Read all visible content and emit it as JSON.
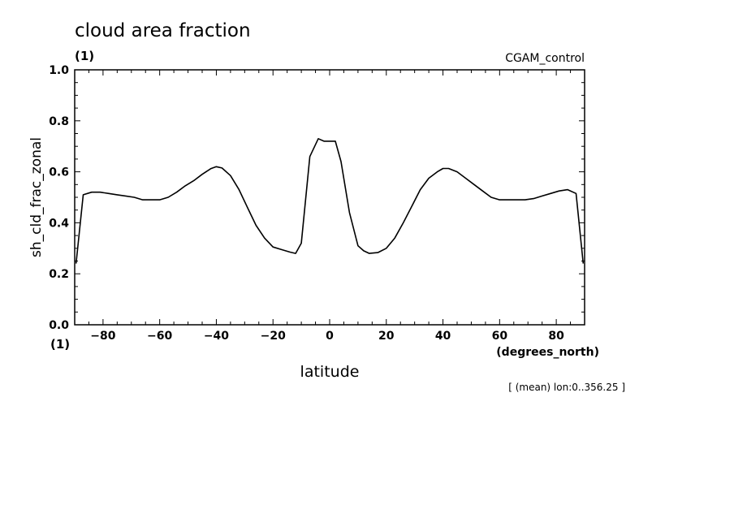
{
  "chart_data": {
    "type": "line",
    "title": "cloud area fraction",
    "title_units": "(1)",
    "run_label": "CGAM_control",
    "ylabel": "sh_cld_frac_zonal",
    "y_units": "(1)",
    "xlabel": "latitude",
    "x_units": "(degrees_north)",
    "note": "[ (mean) lon:0..356.25 ]",
    "xlim": [
      -90,
      90
    ],
    "ylim": [
      0.0,
      1.0
    ],
    "x_ticks": [
      -80,
      -60,
      -40,
      -20,
      0,
      20,
      40,
      60,
      80
    ],
    "x_tick_labels": [
      "−80",
      "−60",
      "−40",
      "−20",
      "0",
      "20",
      "40",
      "60",
      "80"
    ],
    "y_ticks": [
      0.0,
      0.2,
      0.4,
      0.6,
      0.8,
      1.0
    ],
    "y_tick_labels": [
      "0.0",
      "0.2",
      "0.4",
      "0.6",
      "0.8",
      "1.0"
    ],
    "grid": false,
    "line_color": "#000000",
    "series": [
      {
        "x": [
          -89.5,
          -87.0,
          -84.0,
          -81.0,
          -78.0,
          -75.0,
          -72.0,
          -69.0,
          -66.0,
          -63.0,
          -60.0,
          -57.0,
          -54.0,
          -51.0,
          -48.0,
          -45.0,
          -42.0,
          -40.0,
          -38.0,
          -35.0,
          -32.0,
          -29.0,
          -26.0,
          -23.0,
          -20.0,
          -17.0,
          -14.0,
          -12.0,
          -10.0,
          -7.0,
          -4.0,
          -2.0,
          2.0,
          4.0,
          7.0,
          10.0,
          12.0,
          14.0,
          17.0,
          20.0,
          23.0,
          26.0,
          29.0,
          32.0,
          35.0,
          38.0,
          40.0,
          42.0,
          45.0,
          48.0,
          51.0,
          54.0,
          57.0,
          60.0,
          63.0,
          66.0,
          69.0,
          72.0,
          75.0,
          78.0,
          81.0,
          84.0,
          87.0,
          89.5
        ],
        "y": [
          0.24,
          0.51,
          0.52,
          0.52,
          0.515,
          0.51,
          0.505,
          0.5,
          0.49,
          0.49,
          0.49,
          0.5,
          0.52,
          0.545,
          0.565,
          0.59,
          0.612,
          0.62,
          0.615,
          0.585,
          0.53,
          0.46,
          0.39,
          0.34,
          0.305,
          0.295,
          0.285,
          0.28,
          0.32,
          0.66,
          0.73,
          0.72,
          0.72,
          0.64,
          0.44,
          0.31,
          0.29,
          0.28,
          0.283,
          0.3,
          0.34,
          0.4,
          0.465,
          0.53,
          0.575,
          0.6,
          0.613,
          0.613,
          0.6,
          0.575,
          0.55,
          0.525,
          0.5,
          0.49,
          0.49,
          0.49,
          0.49,
          0.495,
          0.505,
          0.515,
          0.525,
          0.53,
          0.515,
          0.24
        ]
      }
    ]
  }
}
